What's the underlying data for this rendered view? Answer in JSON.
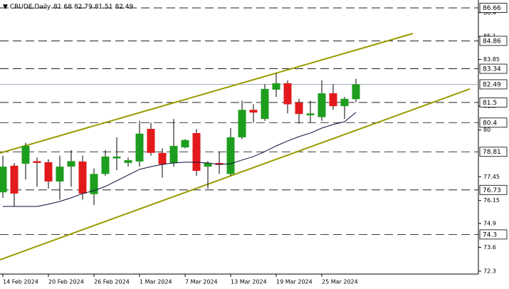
{
  "chart_data": {
    "type": "candlestick",
    "title": "CRUDE,Daily",
    "categories": [
      "14 Feb 2024",
      null,
      null,
      null,
      "20 Feb 2024",
      null,
      null,
      null,
      "26 Feb 2024",
      null,
      null,
      null,
      "1 Mar 2024",
      null,
      null,
      null,
      "7 Mar 2024",
      null,
      null,
      null,
      "13 Mar 2024",
      null,
      null,
      null,
      "19 Mar 2024",
      null,
      null,
      null,
      "25 Mar 2024",
      null,
      null,
      null
    ],
    "open": [
      76.6,
      78.05,
      78.16,
      78.3,
      78.24,
      77.19,
      78.0,
      78.28,
      76.5,
      77.6,
      78.45,
      78.2,
      78.28,
      80.06,
      78.75,
      78.2,
      79.05,
      79.83,
      78.0,
      78.2,
      77.6,
      79.6,
      81.1,
      80.6,
      82.2,
      82.55,
      81.5,
      80.8,
      80.7,
      82.0,
      81.3,
      81.68
    ],
    "high": [
      78.6,
      78.2,
      79.3,
      78.5,
      78.4,
      78.6,
      78.9,
      78.6,
      77.9,
      78.9,
      79.6,
      78.5,
      80.5,
      80.4,
      79.0,
      80.6,
      79.5,
      80.05,
      78.3,
      78.8,
      80.1,
      81.6,
      81.4,
      82.5,
      83.1,
      82.7,
      81.7,
      81.6,
      82.7,
      82.5,
      81.8,
      82.79
    ],
    "low": [
      76.3,
      75.83,
      77.3,
      76.9,
      76.8,
      76.2,
      76.9,
      76.2,
      75.9,
      77.5,
      77.8,
      78.0,
      78.0,
      78.6,
      77.4,
      78.0,
      79.0,
      77.5,
      76.8,
      77.6,
      77.5,
      79.5,
      80.4,
      80.5,
      81.8,
      80.9,
      80.35,
      80.4,
      80.5,
      81.1,
      80.6,
      81.51
    ],
    "close": [
      78.0,
      76.53,
      79.13,
      78.2,
      77.19,
      78.0,
      78.3,
      76.53,
      77.6,
      78.55,
      78.55,
      78.35,
      79.8,
      78.75,
      78.13,
      79.13,
      79.45,
      77.77,
      78.2,
      78.1,
      79.6,
      81.1,
      80.95,
      82.24,
      82.55,
      81.4,
      80.87,
      80.9,
      82.0,
      81.3,
      81.7,
      82.49
    ],
    "up_color": "#1e9e1e",
    "down_color": "#e31a1c",
    "ma": {
      "color": "#0b0b3b",
      "values": [
        75.83,
        75.83,
        75.83,
        75.83,
        75.95,
        76.1,
        76.3,
        76.53,
        76.69,
        76.92,
        77.23,
        77.54,
        77.85,
        78.0,
        78.12,
        78.2,
        78.24,
        78.24,
        78.2,
        78.12,
        78.16,
        78.36,
        78.55,
        78.82,
        79.13,
        79.4,
        79.64,
        79.83,
        80.1,
        80.3,
        80.45,
        80.96
      ]
    },
    "trendlines": [
      {
        "color": "#9a9a00",
        "x": [
          -0.25,
          36
        ],
        "y": [
          78.74,
          85.26
        ]
      },
      {
        "color": "#9a9a00",
        "x": [
          -0.25,
          41
        ],
        "y": [
          72.92,
          82.24
        ]
      }
    ],
    "levels": [
      86.66,
      84.86,
      83.34,
      81.5,
      80.4,
      78.81,
      76.73,
      74.3
    ],
    "ylim": [
      72.14,
      87.09
    ],
    "yticks": [
      86.4,
      85.1,
      83.85,
      81.3,
      80.0,
      77.45,
      76.15,
      74.9,
      73.6,
      72.3
    ]
  }
}
